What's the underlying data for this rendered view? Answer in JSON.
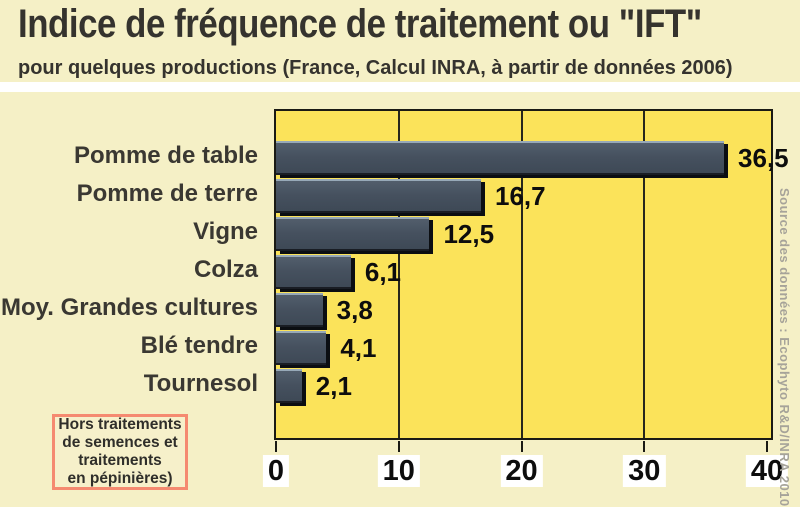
{
  "header": {
    "title": "Indice de fréquence de traitement ou \"IFT\"",
    "subtitle": "pour quelques productions (France, Calcul INRA, à partir de données 2006)"
  },
  "chart_data": {
    "type": "bar",
    "orientation": "horizontal",
    "title": "Indice de fréquence de traitement ou \"IFT\"",
    "subtitle": "pour quelques productions (France, Calcul INRA, à partir de données 2006)",
    "categories": [
      "Pomme de table",
      "Pomme de terre",
      "Vigne",
      "Colza",
      "Moy. Grandes cultures",
      "Blé tendre",
      "Tournesol"
    ],
    "values": [
      36.5,
      16.7,
      12.5,
      6.1,
      3.8,
      4.1,
      2.1
    ],
    "value_labels": [
      "36,5",
      "16,7",
      "12,5",
      "6,1",
      "3,8",
      "4,1",
      "2,1"
    ],
    "xlim": [
      0,
      40
    ],
    "x_ticks": [
      0,
      10,
      20,
      30,
      40
    ],
    "x_tick_labels": [
      "0",
      "10",
      "20",
      "30",
      "40"
    ],
    "grid": "vertical gridlines at 10, 20, 30",
    "legend": "none",
    "xlabel": "",
    "ylabel": ""
  },
  "note": {
    "lines": [
      "Hors traitements",
      "de semences et",
      "traitements",
      "en pépinières)"
    ]
  },
  "source": {
    "text": "Source des données : Ecophyto R&D/INRA 2010"
  },
  "colors": {
    "page_background": "#f5f0c6",
    "plot_background": "#fbe35a",
    "bar_fill": "#46515f",
    "bar_highlight": "#97a9b8",
    "bar_shadow": "#0b0e12",
    "gridline": "#26261c",
    "title_text": "#35332e",
    "label_text": "#3a3832",
    "value_text": "#0d0d0d",
    "note_border": "#f58a70",
    "source_text": "#a6a399",
    "separator": "#ffffff"
  }
}
